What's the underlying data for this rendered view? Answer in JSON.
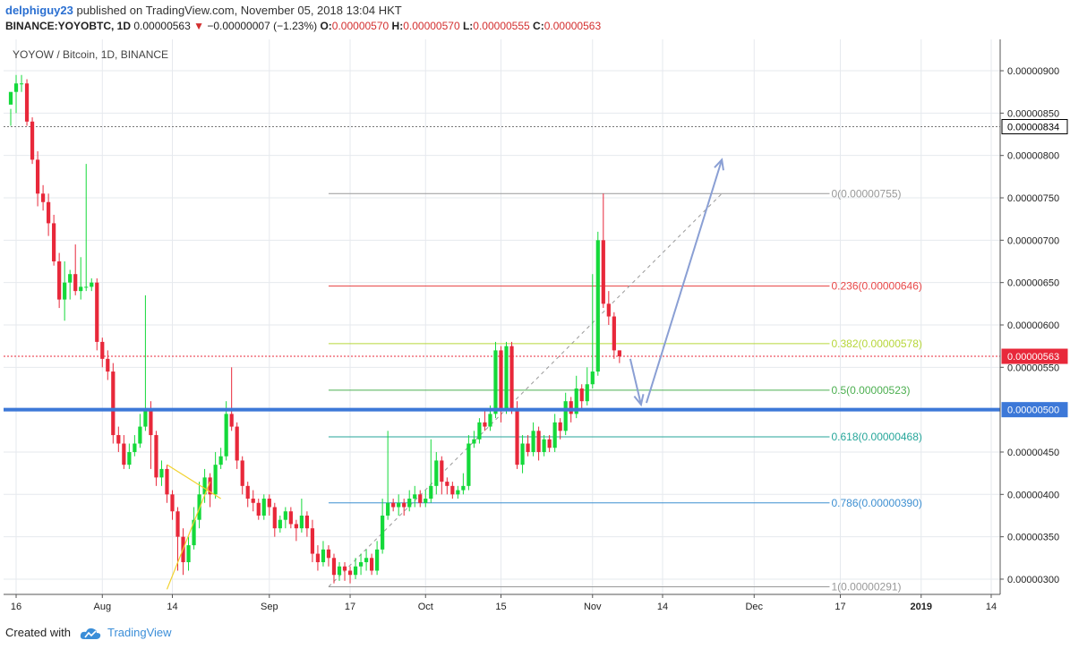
{
  "header": {
    "author": "delphiguy23",
    "published_text": " published on TradingView.com, November 05, 2018 13:04 HKT",
    "symbol": "BINANCE:YOYOBTC, 1D",
    "last_price": "0.00000563",
    "change": "−0.00000007 (−1.23%)",
    "o_label": "O:",
    "o_value": "0.00000570",
    "h_label": "H:",
    "h_value": "0.00000570",
    "l_label": "L:",
    "l_value": "0.00000555",
    "c_label": "C:",
    "c_value": "0.00000563"
  },
  "footer": {
    "created_with": "Created with",
    "brand": "TradingView"
  },
  "colors": {
    "up": "#14d93a",
    "down": "#e8283a",
    "grid": "#e6e9ee",
    "support": "#3c78d8",
    "dotted_white": "#777777",
    "price_line": "#e8283a",
    "projection": "#8a9fd4"
  },
  "chart_data": {
    "type": "candlestick",
    "title": "YOYOW / Bitcoin, 1D, BINANCE",
    "y_range": [
      2.82e-06,
      9.37e-06
    ],
    "y_ticks": [
      "0.00000900",
      "0.00000850",
      "0.00000800",
      "0.00000750",
      "0.00000700",
      "0.00000650",
      "0.00000600",
      "0.00000550",
      "0.00000450",
      "0.00000400",
      "0.00000350",
      "0.00000300"
    ],
    "y_tick_values": [
      9.0,
      8.5,
      8.0,
      7.5,
      7.0,
      6.5,
      6.0,
      5.5,
      4.5,
      4.0,
      3.5,
      3.0
    ],
    "x_start_index": 0,
    "x_end_index": 120,
    "x_ticks": [
      {
        "label": "16",
        "index": 1
      },
      {
        "label": "Aug",
        "index": 17
      },
      {
        "label": "14",
        "index": 30
      },
      {
        "label": "Sep",
        "index": 48
      },
      {
        "label": "17",
        "index": 63
      },
      {
        "label": "Oct",
        "index": 77
      },
      {
        "label": "15",
        "index": 91
      },
      {
        "label": "Nov",
        "index": 108
      },
      {
        "label": "14",
        "index": 121
      },
      {
        "label": "Dec",
        "index": 138
      },
      {
        "label": "17",
        "index": 154
      },
      {
        "label": "2019",
        "index": 169
      },
      {
        "label": "14",
        "index": 182
      }
    ],
    "x_index_range": [
      0,
      183
    ],
    "price_labels": [
      {
        "value": 8.34,
        "label": "0.00000834",
        "style": "outline"
      },
      {
        "value": 5.63,
        "label": "0.00000563",
        "style": "red"
      },
      {
        "value": 5.0,
        "label": "0.00000500",
        "style": "blue"
      }
    ],
    "support_level": 5.0,
    "white_dotted_level": 8.34,
    "current_price": 5.63,
    "fib_levels": [
      {
        "label": "0(0.00000755)",
        "value": 7.55,
        "color": "#999999"
      },
      {
        "label": "0.236(0.00000646)",
        "value": 6.46,
        "color": "#e84848"
      },
      {
        "label": "0.382(0.00000578)",
        "value": 5.78,
        "color": "#b7d63a"
      },
      {
        "label": "0.5(0.00000523)",
        "value": 5.23,
        "color": "#4caf50"
      },
      {
        "label": "0.618(0.00000468)",
        "value": 4.68,
        "color": "#26a69a"
      },
      {
        "label": "0.786(0.00000390)",
        "value": 3.9,
        "color": "#3d8fd1"
      },
      {
        "label": "1(0.00000291)",
        "value": 2.91,
        "color": "#999999"
      }
    ],
    "fib_x_range": [
      59,
      152
    ],
    "fib_trend_from": {
      "index": 59,
      "value": 2.91
    },
    "fib_trend_to": {
      "index": 132,
      "value": 7.55
    },
    "projection": [
      {
        "index": 115,
        "value": 5.6
      },
      {
        "index": 117,
        "value": 5.06
      },
      {
        "index": 118,
        "value": 5.08
      },
      {
        "index": 132,
        "value": 7.95
      }
    ],
    "yellow_lines": [
      {
        "from": {
          "index": 29,
          "value": 2.88
        },
        "to": {
          "index": 37,
          "value": 4.15
        }
      },
      {
        "from": {
          "index": 29,
          "value": 4.35
        },
        "to": {
          "index": 39,
          "value": 3.95
        }
      }
    ],
    "candles": [
      [
        8.6,
        8.75,
        8.55,
        8.35
      ],
      [
        8.75,
        8.85,
        8.95,
        8.5
      ],
      [
        8.85,
        8.85,
        8.95,
        8.75
      ],
      [
        8.85,
        8.4,
        8.9,
        8.35
      ],
      [
        8.4,
        7.95,
        8.45,
        7.9
      ],
      [
        7.95,
        7.55,
        8.05,
        7.4
      ],
      [
        7.55,
        7.45,
        7.65,
        7.35
      ],
      [
        7.45,
        7.2,
        7.55,
        7.05
      ],
      [
        7.2,
        6.75,
        7.3,
        6.7
      ],
      [
        6.75,
        6.3,
        6.85,
        6.2
      ],
      [
        6.3,
        6.5,
        6.75,
        6.05
      ],
      [
        6.5,
        6.6,
        6.65,
        6.3
      ],
      [
        6.6,
        6.4,
        6.95,
        6.35
      ],
      [
        6.4,
        6.45,
        6.8,
        6.3
      ],
      [
        6.45,
        6.45,
        7.9,
        6.4
      ],
      [
        6.45,
        6.5,
        6.55,
        6.4
      ],
      [
        6.5,
        5.8,
        6.55,
        5.7
      ],
      [
        5.8,
        5.6,
        5.85,
        5.5
      ],
      [
        5.6,
        5.45,
        5.7,
        5.35
      ],
      [
        5.45,
        4.7,
        5.55,
        4.6
      ],
      [
        4.7,
        4.6,
        4.8,
        4.5
      ],
      [
        4.6,
        4.35,
        4.7,
        4.3
      ],
      [
        4.35,
        4.5,
        4.6,
        4.3
      ],
      [
        4.5,
        4.6,
        4.7,
        4.45
      ],
      [
        4.6,
        4.8,
        4.95,
        4.55
      ],
      [
        4.8,
        5.0,
        6.35,
        4.75
      ],
      [
        5.0,
        4.7,
        5.1,
        4.3
      ],
      [
        4.7,
        4.2,
        4.75,
        4.1
      ],
      [
        4.2,
        4.3,
        4.4,
        4.1
      ],
      [
        4.3,
        4.0,
        4.35,
        3.9
      ],
      [
        4.0,
        3.8,
        4.05,
        3.7
      ],
      [
        3.8,
        3.5,
        3.85,
        3.1
      ],
      [
        3.5,
        3.2,
        3.6,
        3.05
      ],
      [
        3.2,
        3.4,
        3.5,
        3.1
      ],
      [
        3.4,
        3.7,
        3.85,
        3.35
      ],
      [
        3.7,
        4.0,
        4.15,
        3.6
      ],
      [
        4.0,
        4.2,
        4.3,
        3.9
      ],
      [
        4.2,
        4.0,
        4.25,
        3.85
      ],
      [
        4.0,
        4.35,
        4.5,
        3.95
      ],
      [
        4.35,
        4.45,
        4.55,
        4.3
      ],
      [
        4.45,
        4.95,
        5.1,
        4.4
      ],
      [
        4.95,
        4.8,
        5.5,
        4.75
      ],
      [
        4.8,
        4.4,
        4.85,
        4.3
      ],
      [
        4.4,
        4.1,
        4.45,
        4.0
      ],
      [
        4.1,
        3.95,
        4.15,
        3.85
      ],
      [
        3.95,
        3.9,
        4.05,
        3.8
      ],
      [
        3.9,
        3.75,
        3.95,
        3.7
      ],
      [
        3.75,
        3.95,
        4.0,
        3.7
      ],
      [
        3.95,
        3.85,
        4.0,
        3.75
      ],
      [
        3.85,
        3.6,
        3.9,
        3.5
      ],
      [
        3.6,
        3.7,
        3.75,
        3.55
      ],
      [
        3.7,
        3.8,
        3.85,
        3.6
      ],
      [
        3.8,
        3.65,
        3.85,
        3.6
      ],
      [
        3.65,
        3.6,
        3.7,
        3.45
      ],
      [
        3.6,
        3.75,
        3.95,
        3.55
      ],
      [
        3.75,
        3.6,
        3.8,
        3.5
      ],
      [
        3.6,
        3.3,
        3.7,
        3.2
      ],
      [
        3.3,
        3.2,
        3.4,
        3.1
      ],
      [
        3.2,
        3.35,
        3.45,
        3.15
      ],
      [
        3.35,
        3.25,
        3.4,
        3.15
      ],
      [
        3.25,
        3.05,
        3.3,
        2.95
      ],
      [
        3.05,
        3.15,
        3.2,
        2.98
      ],
      [
        3.15,
        3.1,
        3.2,
        2.98
      ],
      [
        3.1,
        3.05,
        3.15,
        2.95
      ],
      [
        3.05,
        3.15,
        3.25,
        3.0
      ],
      [
        3.15,
        3.2,
        3.3,
        3.05
      ],
      [
        3.2,
        3.25,
        3.35,
        3.1
      ],
      [
        3.25,
        3.1,
        3.3,
        3.05
      ],
      [
        3.1,
        3.35,
        3.45,
        3.05
      ],
      [
        3.35,
        3.75,
        3.95,
        3.3
      ],
      [
        3.75,
        3.9,
        4.75,
        3.7
      ],
      [
        3.9,
        3.85,
        3.95,
        3.8
      ],
      [
        3.85,
        3.9,
        4.0,
        3.75
      ],
      [
        3.9,
        3.85,
        3.95,
        3.75
      ],
      [
        3.85,
        3.95,
        4.05,
        3.8
      ],
      [
        3.95,
        4.0,
        4.1,
        3.85
      ],
      [
        4.0,
        3.9,
        4.05,
        3.85
      ],
      [
        3.9,
        3.95,
        4.05,
        3.85
      ],
      [
        3.95,
        4.1,
        4.65,
        3.9
      ],
      [
        4.1,
        4.4,
        4.5,
        4.0
      ],
      [
        4.4,
        4.15,
        4.45,
        4.0
      ],
      [
        4.15,
        4.1,
        4.2,
        4.0
      ],
      [
        4.1,
        4.0,
        4.15,
        3.95
      ],
      [
        4.0,
        4.05,
        4.1,
        3.95
      ],
      [
        4.05,
        4.1,
        4.25,
        4.0
      ],
      [
        4.1,
        4.6,
        4.7,
        4.05
      ],
      [
        4.6,
        4.65,
        4.75,
        4.55
      ],
      [
        4.65,
        4.85,
        4.9,
        4.6
      ],
      [
        4.85,
        4.8,
        5.0,
        4.75
      ],
      [
        4.8,
        4.95,
        5.05,
        4.75
      ],
      [
        4.95,
        5.7,
        5.8,
        4.9
      ],
      [
        5.7,
        5.0,
        5.75,
        4.85
      ],
      [
        5.0,
        5.75,
        5.8,
        4.95
      ],
      [
        5.75,
        5.0,
        5.8,
        4.95
      ],
      [
        5.0,
        4.35,
        5.1,
        4.3
      ],
      [
        4.35,
        4.6,
        4.7,
        4.25
      ],
      [
        4.6,
        4.5,
        4.7,
        4.45
      ],
      [
        4.5,
        4.75,
        4.85,
        4.45
      ],
      [
        4.75,
        4.5,
        4.8,
        4.4
      ],
      [
        4.5,
        4.65,
        4.7,
        4.45
      ],
      [
        4.65,
        4.55,
        4.7,
        4.5
      ],
      [
        4.55,
        4.85,
        4.95,
        4.5
      ],
      [
        4.85,
        4.75,
        4.9,
        4.65
      ],
      [
        4.75,
        5.1,
        5.2,
        4.7
      ],
      [
        5.1,
        4.95,
        5.15,
        4.85
      ],
      [
        4.95,
        5.25,
        5.4,
        4.9
      ],
      [
        5.25,
        5.1,
        5.3,
        5.0
      ],
      [
        5.1,
        5.3,
        5.5,
        5.05
      ],
      [
        5.3,
        5.45,
        6.6,
        5.25
      ],
      [
        5.45,
        7.0,
        7.1,
        5.4
      ],
      [
        7.0,
        6.25,
        7.55,
        6.2
      ],
      [
        6.25,
        6.1,
        6.4,
        6.0
      ],
      [
        6.1,
        5.7,
        6.15,
        5.6
      ],
      [
        5.7,
        5.63,
        5.7,
        5.55
      ]
    ]
  }
}
